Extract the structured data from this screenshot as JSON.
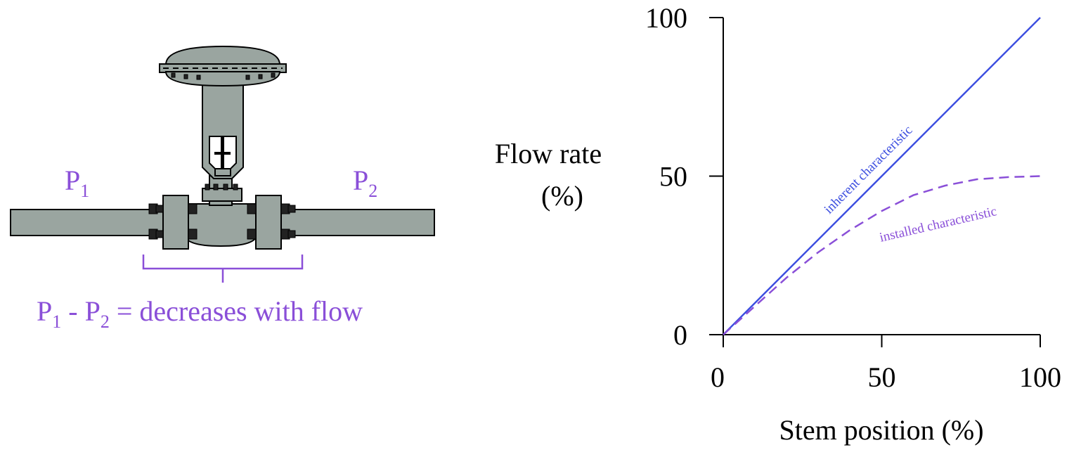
{
  "diagram": {
    "p1": {
      "main": "P",
      "sub": "1"
    },
    "p2": {
      "main": "P",
      "sub": "2"
    },
    "equation": {
      "a_main": "P",
      "a_sub": "1",
      "dash": " - ",
      "b_main": "P",
      "b_sub": "2",
      "rest": " = decreases with flow"
    }
  },
  "chart_data": {
    "type": "line",
    "title": "",
    "xlabel": "Stem position (%)",
    "ylabel_line1": "Flow rate",
    "ylabel_line2": "(%)",
    "xlim": [
      0,
      100
    ],
    "ylim": [
      0,
      100
    ],
    "xticks": [
      "0",
      "50",
      "100"
    ],
    "yticks": [
      "0",
      "50",
      "100"
    ],
    "grid": false,
    "series": [
      {
        "name": "inherent characteristic",
        "style": "solid",
        "color": "#3d4fe0",
        "x": [
          0,
          100
        ],
        "y": [
          0,
          100
        ]
      },
      {
        "name": "installed characteristic",
        "style": "dashed",
        "color": "#8a4fd8",
        "x": [
          0,
          10,
          20,
          30,
          40,
          50,
          60,
          70,
          80,
          90,
          100
        ],
        "y": [
          0,
          9,
          18,
          26,
          33,
          39,
          44,
          47,
          49,
          49.7,
          50
        ]
      }
    ]
  }
}
